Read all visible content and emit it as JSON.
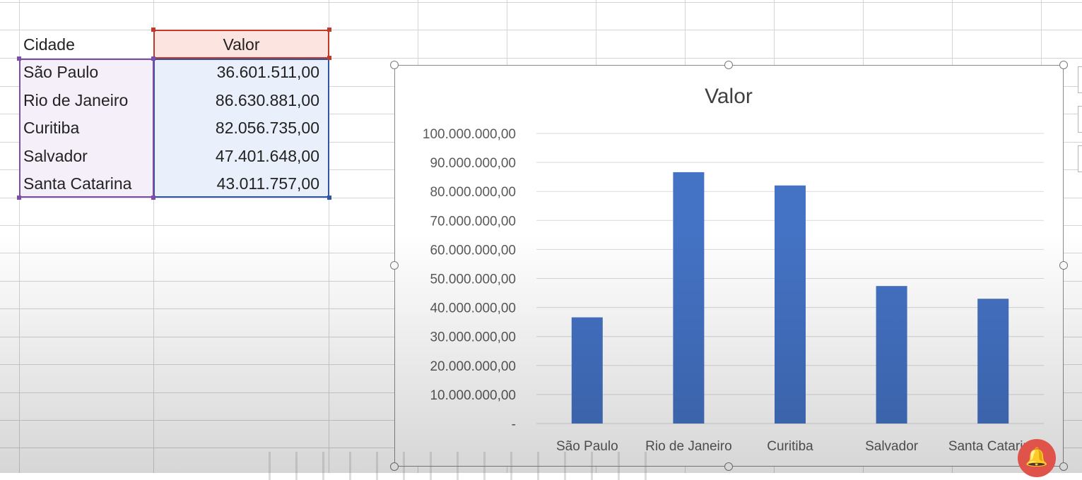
{
  "table": {
    "header": {
      "city": "Cidade",
      "value": "Valor"
    },
    "rows": [
      {
        "city": "São Paulo",
        "value": "36.601.511,00"
      },
      {
        "city": "Rio de Janeiro",
        "value": "86.630.881,00"
      },
      {
        "city": "Curitiba",
        "value": "82.056.735,00"
      },
      {
        "city": "Salvador",
        "value": "47.401.648,00"
      },
      {
        "city": "Santa Catarina",
        "value": "43.011.757,00"
      }
    ]
  },
  "colors": {
    "bar": "#4472c4",
    "header_fill": "#fce4e0",
    "value_fill": "#eaf0fb",
    "city_fill": "#f5effa"
  },
  "chart_data": {
    "type": "bar",
    "title": "Valor",
    "categories": [
      "São Paulo",
      "Rio de Janeiro",
      "Curitiba",
      "Salvador",
      "Santa Catarina"
    ],
    "series": [
      {
        "values": [
          36601511,
          86630881,
          82056735,
          47401648,
          43011757
        ]
      }
    ],
    "ylim": [
      0,
      100000000
    ],
    "yticks": [
      {
        "value": 100000000,
        "label": "100.000.000,00"
      },
      {
        "value": 90000000,
        "label": "90.000.000,00"
      },
      {
        "value": 80000000,
        "label": "80.000.000,00"
      },
      {
        "value": 70000000,
        "label": "70.000.000,00"
      },
      {
        "value": 60000000,
        "label": "60.000.000,00"
      },
      {
        "value": 50000000,
        "label": "50.000.000,00"
      },
      {
        "value": 40000000,
        "label": "40.000.000,00"
      },
      {
        "value": 30000000,
        "label": "30.000.000,00"
      },
      {
        "value": 20000000,
        "label": "20.000.000,00"
      },
      {
        "value": 10000000,
        "label": "10.000.000,00"
      },
      {
        "value": 0,
        "label": "-"
      }
    ],
    "xlabel": "",
    "ylabel": "",
    "grid": true,
    "legend": "none"
  }
}
